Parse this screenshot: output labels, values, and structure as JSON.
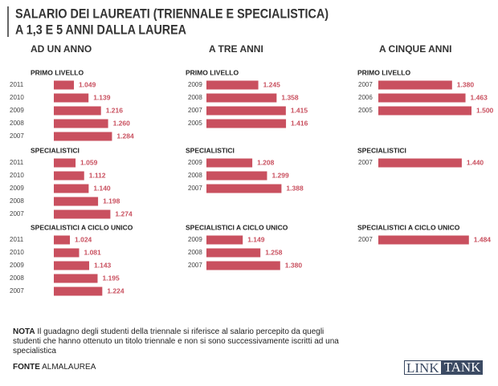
{
  "title": "SALARIO DEI LAUREATI (TRIENNALE E SPECIALISTICA)",
  "subtitle": "A 1,3 E 5 ANNI DALLA LAUREA",
  "chart_data": [
    {
      "type": "bar",
      "title": "AD UN ANNO",
      "panels": [
        {
          "title": "PRIMO LIVELLO",
          "color": "#c9505f",
          "categories": [
            "2011",
            "2010",
            "2009",
            "2008",
            "2007"
          ],
          "values": [
            1049,
            1139,
            1216,
            1260,
            1284
          ],
          "value_labels": [
            "1.049",
            "1.139",
            "1.216",
            "1.260",
            "1.284"
          ]
        },
        {
          "title": "SPECIALISTICI",
          "color": "#c9505f",
          "categories": [
            "2011",
            "2010",
            "2009",
            "2008",
            "2007"
          ],
          "values": [
            1059,
            1112,
            1140,
            1198,
            1274
          ],
          "value_labels": [
            "1.059",
            "1.112",
            "1.140",
            "1.198",
            "1.274"
          ]
        },
        {
          "title": "SPECIALISTICI A CICLO UNICO",
          "color": "#c9505f",
          "categories": [
            "2011",
            "2010",
            "2009",
            "2008",
            "2007"
          ],
          "values": [
            1024,
            1081,
            1143,
            1195,
            1224
          ],
          "value_labels": [
            "1.024",
            "1.081",
            "1.143",
            "1.195",
            "1.224"
          ]
        }
      ]
    },
    {
      "type": "bar",
      "title": "A TRE ANNI",
      "panels": [
        {
          "title": "PRIMO LIVELLO",
          "color": "#c9505f",
          "categories": [
            "2009",
            "2008",
            "2007",
            "2005"
          ],
          "values": [
            1245,
            1358,
            1415,
            1416
          ],
          "value_labels": [
            "1.245",
            "1.358",
            "1.415",
            "1.416"
          ]
        },
        {
          "title": "SPECIALISTICI",
          "color": "#c9505f",
          "categories": [
            "2009",
            "2008",
            "2007"
          ],
          "values": [
            1208,
            1299,
            1388
          ],
          "value_labels": [
            "1.208",
            "1.299",
            "1.388"
          ]
        },
        {
          "title": "SPECIALISTICI A CICLO UNICO",
          "color": "#c9505f",
          "categories": [
            "2009",
            "2008",
            "2007"
          ],
          "values": [
            1149,
            1258,
            1380
          ],
          "value_labels": [
            "1.149",
            "1.258",
            "1.380"
          ]
        }
      ]
    },
    {
      "type": "bar",
      "title": "A CINQUE ANNI",
      "panels": [
        {
          "title": "PRIMO LIVELLO",
          "color": "#c9505f",
          "categories": [
            "2007",
            "2006",
            "2005"
          ],
          "values": [
            1380,
            1463,
            1500
          ],
          "value_labels": [
            "1.380",
            "1.463",
            "1.500"
          ]
        },
        {
          "title": "SPECIALISTICI",
          "color": "#c9505f",
          "categories": [
            "2007"
          ],
          "values": [
            1440
          ],
          "value_labels": [
            "1.440"
          ]
        },
        {
          "title": "SPECIALISTICI A CICLO UNICO",
          "color": "#c9505f",
          "categories": [
            "2007"
          ],
          "values": [
            1484
          ],
          "value_labels": [
            "1.484"
          ]
        }
      ]
    }
  ],
  "note": {
    "label": "NOTA",
    "text": "Il guadagno degli studenti della triennale si riferisce al salario percepito da quegli studenti che hanno ottenuto un titolo triennale e non si sono successivamente iscritti ad una specialistica"
  },
  "source": {
    "label": "FONTE",
    "text": "ALMALAUREA"
  },
  "logo": [
    "LINK",
    "TANK"
  ]
}
